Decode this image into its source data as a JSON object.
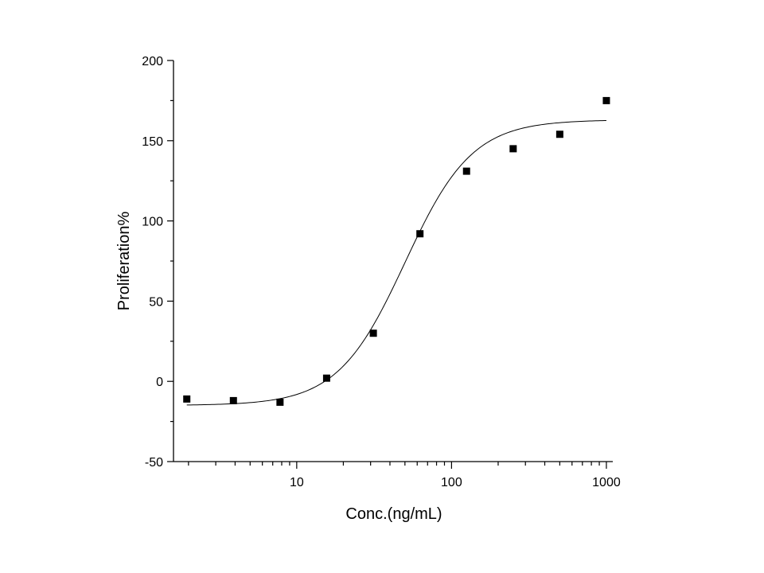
{
  "chart_data": {
    "type": "scatter",
    "title": "",
    "xlabel": "Conc.(ng/mL)",
    "ylabel": "Proliferation%",
    "xscale": "log",
    "xlim": [
      1.6,
      1100
    ],
    "ylim": [
      -50,
      200
    ],
    "x_major_ticks": [
      10,
      100,
      1000
    ],
    "x_tick_labels": [
      "10",
      "100",
      "1000"
    ],
    "y_ticks": [
      -50,
      0,
      50,
      100,
      150,
      200
    ],
    "y_tick_labels": [
      "-50",
      "0",
      "50",
      "100",
      "150",
      "200"
    ],
    "grid": false,
    "legend": "none",
    "series": [
      {
        "marker": "square",
        "color": "#000000",
        "x": [
          1.95,
          3.9,
          7.8,
          15.6,
          31.25,
          62.5,
          125,
          250,
          500,
          1000
        ],
        "y": [
          -11,
          -12,
          -13,
          2,
          30,
          92,
          131,
          145,
          154,
          175
        ]
      }
    ],
    "fit_curve": {
      "model": "4PL",
      "bottom": -15,
      "top": 163,
      "ec50": 50,
      "hill": 2.0,
      "x_range": [
        1.95,
        1000
      ],
      "color": "#000000"
    }
  }
}
